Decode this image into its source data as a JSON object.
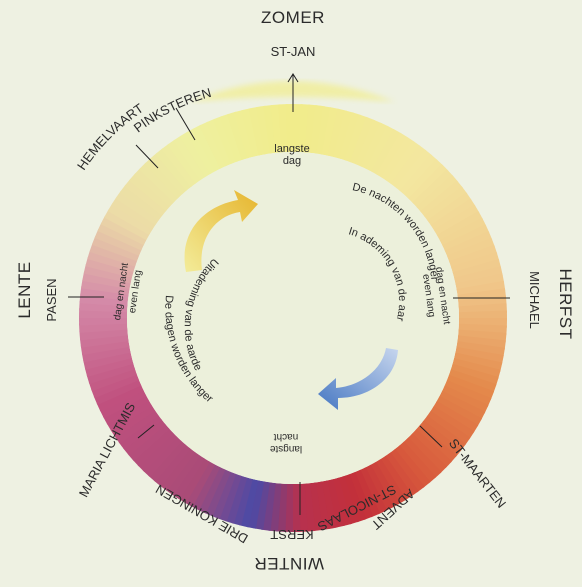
{
  "seasons": {
    "summer": "ZOMER",
    "autumn": "HERFST",
    "winter": "WINTER",
    "spring": "LENTE"
  },
  "festivals": {
    "st_jan": "ST-JAN",
    "pinksteren": "PINKSTEREN",
    "hemelvaart": "HEMELVAART",
    "pasen": "PASEN",
    "maria_lichtmis": "MARIA LICHTMIS",
    "drie_koningen": "DRIE KONINGEN",
    "kerst": "KERST",
    "st_nicolaas": "ST-NICOLAAS",
    "advent": "ADVENT",
    "st_maarten": "ST-MAARTEN",
    "michael": "MICHAEL"
  },
  "inner_labels": {
    "langste": "langste",
    "dag": "dag",
    "langste_nacht_1": "langste",
    "langste_nacht_2": "nacht",
    "nachten_langer": "De nachten worden langer",
    "inademing": "In ademing van de aarde",
    "dagen_langer": "De dagen worden langer",
    "uitademing": "Uitademing van de aarde",
    "dag_nacht_left_1": "dag en nacht",
    "dag_nacht_left_2": "even lang",
    "dag_nacht_right_1": "dag en nacht",
    "dag_nacht_right_2": "even lang"
  },
  "colors": {
    "background": "#eef1e2",
    "summer": "#f1ec8a",
    "autumn": "#e48a4c",
    "winter_red": "#c3303a",
    "winter_blue": "#4b4aa6",
    "spring": "#c0507e",
    "arrow_yellow": "#e9c43a",
    "arrow_blue": "#5b86c6"
  }
}
